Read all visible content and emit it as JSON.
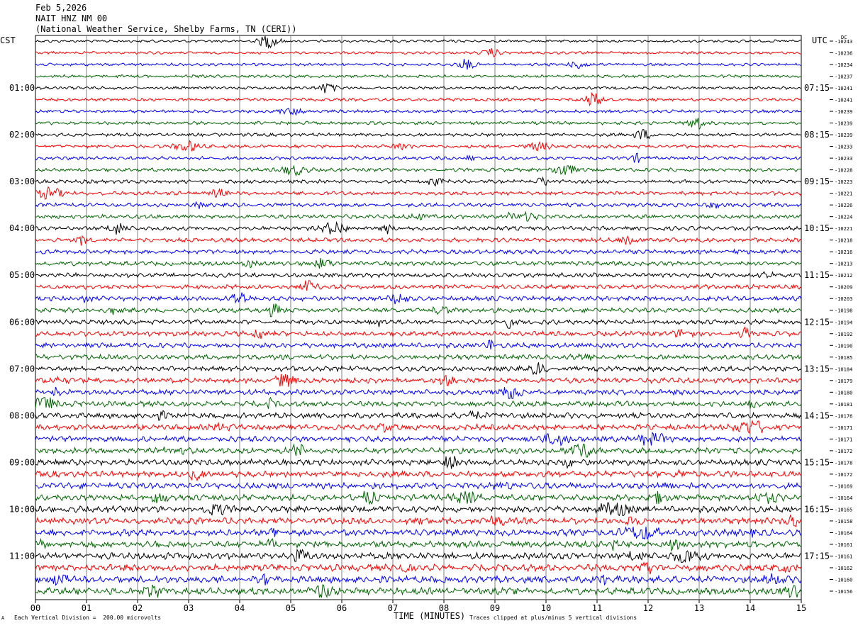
{
  "header": {
    "date": "Feb 5,2026",
    "station": "NAIT HNZ NM 00",
    "location": "(National Weather Service, Shelby Farms, TN (CERI))"
  },
  "labels": {
    "left_tz": "CST",
    "right_tz": "UTC",
    "dc_label": "DC",
    "xlabel": "TIME (MINUTES)",
    "footer_left": "Each Vertical Division =  200.00 microvolts",
    "footer_right": "Traces clipped at plus/minus 5 vertical divisions",
    "corner_mark": "A"
  },
  "colors": {
    "line1": "#000000",
    "line2": "#ff0000",
    "line3": "#0000ff",
    "line4": "#006400",
    "grid": "#808080"
  },
  "chart_data": {
    "type": "line",
    "title": "NAIT HNZ NM 00",
    "xlabel": "TIME (MINUTES)",
    "xlim": [
      0,
      15
    ],
    "x_ticks": [
      "00",
      "01",
      "02",
      "03",
      "04",
      "05",
      "06",
      "07",
      "08",
      "09",
      "10",
      "11",
      "12",
      "13",
      "14",
      "15"
    ],
    "trace_count": 48,
    "color_cycle": [
      "black",
      "red",
      "blue",
      "green"
    ],
    "left_hour_labels": [
      "01:00",
      "02:00",
      "03:00",
      "04:00",
      "05:00",
      "06:00",
      "07:00",
      "08:00",
      "09:00",
      "10:00",
      "11:00"
    ],
    "right_hour_labels": [
      "07:15",
      "08:15",
      "09:15",
      "10:15",
      "11:15",
      "12:15",
      "13:15",
      "14:15",
      "15:15",
      "16:15",
      "17:15"
    ],
    "dc_offsets": [
      "-10243",
      "-10236",
      "-10234",
      "-10237",
      "-10241",
      "-10241",
      "-10239",
      "-10239",
      "-10239",
      "-10233",
      "-10233",
      "-10228",
      "-10223",
      "-10221",
      "-10226",
      "-10224",
      "-10221",
      "-10218",
      "-10216",
      "-10213",
      "-10212",
      "-10209",
      "-10203",
      "-10198",
      "-10194",
      "-10192",
      "-10190",
      "-10185",
      "-10184",
      "-10179",
      "-10180",
      "-10181",
      "-10176",
      "-10171",
      "-10171",
      "-10172",
      "-10178",
      "-10172",
      "-10169",
      "-10164",
      "-10165",
      "-10158",
      "-10164",
      "-10161",
      "-10161",
      "-10162",
      "-10160",
      "-10156"
    ],
    "vertical_division_microvolts": 200.0,
    "clip_divisions": 5
  }
}
